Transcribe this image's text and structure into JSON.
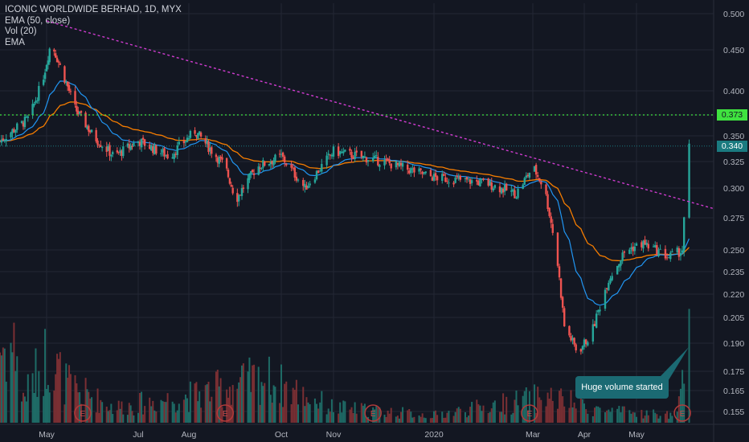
{
  "legend": {
    "symbol": "ICONIC WORLDWIDE BERHAD, 1D, MYX",
    "ema50": "EMA (50, close)",
    "vol": "Vol (20)",
    "ema": "EMA"
  },
  "annotation": {
    "callout_text": "Huge volume started"
  },
  "price_tags": {
    "resistance": "0.373",
    "last": "0.340"
  },
  "colors": {
    "background": "#131722",
    "grid": "#232734",
    "up": "#26a69a",
    "down": "#ef5350",
    "ema50": "#f57c00",
    "ema20": "#2196f3",
    "trendline": "#d13cd1",
    "resistance_line": "#3fe23f",
    "last_price_line": "#1a7a80",
    "earnings_marker": "#b33a3a"
  },
  "chart_data": {
    "type": "candlestick",
    "title": "ICONIC WORLDWIDE BERHAD, 1D, MYX",
    "y_ticks": [
      0.155,
      0.165,
      0.175,
      0.19,
      0.205,
      0.22,
      0.235,
      0.25,
      0.275,
      0.3,
      0.325,
      0.35,
      0.373,
      0.4,
      0.45,
      0.5
    ],
    "y_tick_labels": [
      "0.155",
      "0.165",
      "0.175",
      "0.190",
      "0.205",
      "0.220",
      "0.235",
      "0.250",
      "0.275",
      "0.300",
      "0.325",
      "0.350",
      "0.373",
      "0.400",
      "0.450",
      "0.500"
    ],
    "x_labels": [
      "May",
      "Jul",
      "Aug",
      "Oct",
      "Nov",
      "2020",
      "Mar",
      "Apr",
      "May"
    ],
    "y_scale": "log",
    "grid": true,
    "resistance_level": 0.373,
    "last_price": 0.34,
    "trendline": [
      {
        "date": "2019-05-01",
        "price": 0.49
      },
      {
        "date": "2020-06-05",
        "price": 0.28
      }
    ],
    "earnings_markers": [
      "2019-05-25",
      "2019-08-25",
      "2019-11-25",
      "2020-02-28",
      "2020-05-28"
    ],
    "price_anchors": [
      {
        "date": "2019-04-01",
        "price": 0.345
      },
      {
        "date": "2019-04-20",
        "price": 0.37
      },
      {
        "date": "2019-04-28",
        "price": 0.41
      },
      {
        "date": "2019-05-04",
        "price": 0.46
      },
      {
        "date": "2019-05-10",
        "price": 0.43
      },
      {
        "date": "2019-05-20",
        "price": 0.38
      },
      {
        "date": "2019-06-01",
        "price": 0.35
      },
      {
        "date": "2019-06-15",
        "price": 0.33
      },
      {
        "date": "2019-07-01",
        "price": 0.345
      },
      {
        "date": "2019-07-20",
        "price": 0.33
      },
      {
        "date": "2019-08-05",
        "price": 0.355
      },
      {
        "date": "2019-08-25",
        "price": 0.32
      },
      {
        "date": "2019-09-01",
        "price": 0.29
      },
      {
        "date": "2019-09-15",
        "price": 0.32
      },
      {
        "date": "2019-10-01",
        "price": 0.33
      },
      {
        "date": "2019-10-15",
        "price": 0.3
      },
      {
        "date": "2019-11-01",
        "price": 0.335
      },
      {
        "date": "2019-12-01",
        "price": 0.325
      },
      {
        "date": "2020-01-01",
        "price": 0.31
      },
      {
        "date": "2020-02-01",
        "price": 0.305
      },
      {
        "date": "2020-02-20",
        "price": 0.295
      },
      {
        "date": "2020-03-01",
        "price": 0.32
      },
      {
        "date": "2020-03-08",
        "price": 0.3
      },
      {
        "date": "2020-03-15",
        "price": 0.25
      },
      {
        "date": "2020-03-20",
        "price": 0.2
      },
      {
        "date": "2020-03-28",
        "price": 0.185
      },
      {
        "date": "2020-04-05",
        "price": 0.195
      },
      {
        "date": "2020-04-15",
        "price": 0.23
      },
      {
        "date": "2020-04-25",
        "price": 0.25
      },
      {
        "date": "2020-05-05",
        "price": 0.255
      },
      {
        "date": "2020-05-20",
        "price": 0.245
      },
      {
        "date": "2020-05-28",
        "price": 0.25
      },
      {
        "date": "2020-06-01",
        "price": 0.34
      }
    ],
    "volume_anchors": [
      {
        "date": "2019-04-15",
        "volume": 0.3
      },
      {
        "date": "2019-05-01",
        "volume": 0.9
      },
      {
        "date": "2019-05-15",
        "volume": 0.5
      },
      {
        "date": "2019-06-15",
        "volume": 0.2
      },
      {
        "date": "2019-08-01",
        "volume": 0.35
      },
      {
        "date": "2019-09-20",
        "volume": 0.6
      },
      {
        "date": "2019-11-01",
        "volume": 0.2
      },
      {
        "date": "2020-01-01",
        "volume": 0.1
      },
      {
        "date": "2020-03-10",
        "volume": 0.35
      },
      {
        "date": "2020-04-15",
        "volume": 0.15
      },
      {
        "date": "2020-05-25",
        "volume": 0.1
      },
      {
        "date": "2020-06-01",
        "volume": 1.0
      }
    ]
  }
}
